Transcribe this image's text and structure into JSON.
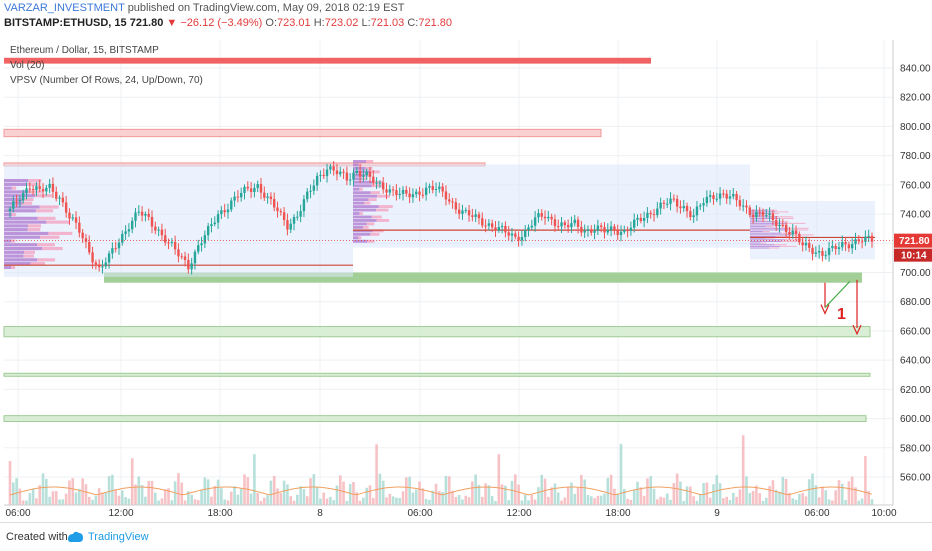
{
  "header": {
    "author": "VARZAR_INVESTMENT",
    "published": "published on TradingView.com, May 09, 2018 02:19 EST",
    "symbol": "BITSTAMP:ETHUSD, 15",
    "last": "721.80",
    "arrow": "▼",
    "change": "−26.12 (−3.49%)",
    "o_label": "O:",
    "o": "723.01",
    "h_label": "H:",
    "h": "723.02",
    "l_label": "L:",
    "l": "721.03",
    "c_label": "C:",
    "c": "721.80"
  },
  "legend": {
    "title": "Ethereum / Dollar, 15, BITSTAMP",
    "vol": "Vol (20)",
    "vpsv": "VPSV (Number Of Rows, 24, Up/Down, 70)"
  },
  "footer": {
    "created": "Created with",
    "brand": "TradingView"
  },
  "colors": {
    "up": "#26a69a",
    "down": "#ef5350",
    "vpUp": "#b07cd1",
    "zoneRed": "#f8c9c9",
    "zoneGreen": "#9ccc8f",
    "lastPrice": "#e53935"
  },
  "chart_data": {
    "type": "candlestick",
    "symbol": "ETHUSD",
    "timeframe": "15",
    "ylim": [
      540,
      850
    ],
    "y_ticks": [
      560,
      580,
      600,
      620,
      640,
      660,
      680,
      700,
      720,
      740,
      760,
      780,
      800,
      820,
      840
    ],
    "x_ticks": [
      "06:00",
      "12:00",
      "18:00",
      "8",
      "06:00",
      "12:00",
      "18:00",
      "9",
      "06:00",
      "10:00"
    ],
    "last_price": "721.80",
    "countdown": "10:14",
    "annotation": "1",
    "close_path": [
      [
        0,
        742
      ],
      [
        3,
        752
      ],
      [
        6,
        760
      ],
      [
        9,
        755
      ],
      [
        12,
        758
      ],
      [
        15,
        752
      ],
      [
        18,
        738
      ],
      [
        21,
        728
      ],
      [
        24,
        715
      ],
      [
        27,
        702
      ],
      [
        30,
        710
      ],
      [
        33,
        722
      ],
      [
        36,
        733
      ],
      [
        39,
        741
      ],
      [
        42,
        736
      ],
      [
        45,
        729
      ],
      [
        48,
        720
      ],
      [
        51,
        712
      ],
      [
        54,
        705
      ],
      [
        57,
        718
      ],
      [
        60,
        728
      ],
      [
        63,
        740
      ],
      [
        66,
        746
      ],
      [
        69,
        752
      ],
      [
        72,
        757
      ],
      [
        75,
        760
      ],
      [
        78,
        750
      ],
      [
        81,
        742
      ],
      [
        84,
        733
      ],
      [
        87,
        739
      ],
      [
        90,
        752
      ],
      [
        93,
        765
      ],
      [
        96,
        772
      ],
      [
        99,
        768
      ],
      [
        102,
        764
      ],
      [
        105,
        770
      ],
      [
        108,
        766
      ],
      [
        111,
        760
      ],
      [
        114,
        758
      ],
      [
        117,
        755
      ],
      [
        120,
        752
      ],
      [
        123,
        754
      ],
      [
        126,
        758
      ],
      [
        129,
        757
      ],
      [
        132,
        752
      ],
      [
        135,
        745
      ],
      [
        138,
        740
      ],
      [
        141,
        737
      ],
      [
        144,
        734
      ],
      [
        147,
        731
      ],
      [
        150,
        727
      ],
      [
        153,
        724
      ],
      [
        156,
        728
      ],
      [
        159,
        736
      ],
      [
        162,
        739
      ],
      [
        165,
        735
      ],
      [
        168,
        731
      ],
      [
        171,
        733
      ],
      [
        174,
        729
      ],
      [
        177,
        730
      ],
      [
        180,
        728
      ],
      [
        183,
        730
      ],
      [
        186,
        728
      ],
      [
        189,
        733
      ],
      [
        192,
        738
      ],
      [
        195,
        743
      ],
      [
        198,
        747
      ],
      [
        201,
        748
      ],
      [
        204,
        745
      ],
      [
        207,
        739
      ],
      [
        210,
        748
      ],
      [
        213,
        753
      ],
      [
        216,
        754
      ],
      [
        219,
        750
      ],
      [
        222,
        745
      ],
      [
        225,
        741
      ],
      [
        228,
        740
      ],
      [
        231,
        735
      ],
      [
        234,
        732
      ],
      [
        237,
        727
      ],
      [
        240,
        718
      ],
      [
        243,
        716
      ],
      [
        246,
        713
      ],
      [
        249,
        715
      ],
      [
        252,
        719
      ],
      [
        255,
        721
      ],
      [
        258,
        722
      ],
      [
        261,
        721.8
      ]
    ],
    "zones": [
      {
        "kind": "resistance",
        "low": 843,
        "high": 847
      },
      {
        "kind": "resistance",
        "low": 793,
        "high": 798
      },
      {
        "kind": "resistance",
        "low": 773,
        "high": 775
      },
      {
        "kind": "support",
        "low": 693,
        "high": 700
      },
      {
        "kind": "support",
        "low": 656,
        "high": 663
      },
      {
        "kind": "support",
        "low": 629,
        "high": 631
      },
      {
        "kind": "support",
        "low": 598,
        "high": 602
      }
    ],
    "volume_profile_rows": 24
  }
}
